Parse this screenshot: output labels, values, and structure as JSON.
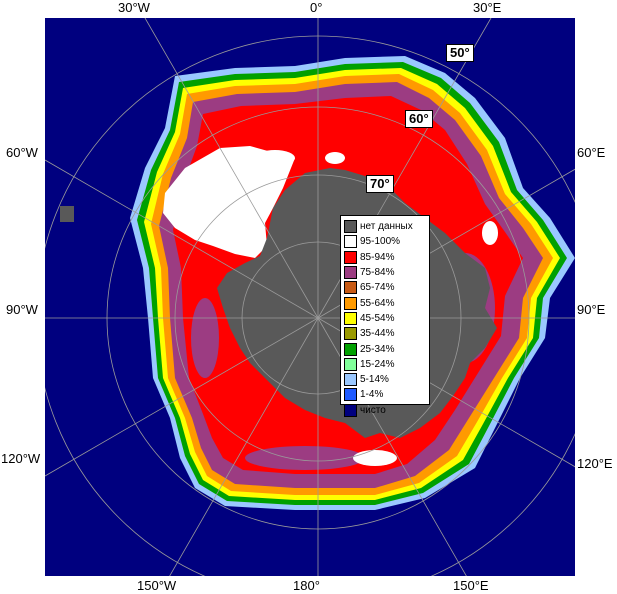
{
  "longitude_labels": {
    "top": [
      "30°W",
      "0°",
      "30°E"
    ],
    "left": [
      "60°W",
      "90°W",
      "120°W"
    ],
    "right": [
      "60°E",
      "90°E",
      "120°E"
    ],
    "bottom": [
      "150°W",
      "180°",
      "150°E"
    ]
  },
  "latitude_labels": [
    "50°",
    "60°",
    "70°"
  ],
  "colors": {
    "ocean": "#00007f",
    "no_data": "#595959",
    "land_outline": "#ffffff",
    "grid": "#9a9a9a"
  },
  "legend": [
    {
      "label": "нет данных",
      "color": "#595959"
    },
    {
      "label": "95-100%",
      "color": "#ffffff"
    },
    {
      "label": "85-94%",
      "color": "#ff0000"
    },
    {
      "label": "75-84%",
      "color": "#9c3c82"
    },
    {
      "label": "65-74%",
      "color": "#c85a14"
    },
    {
      "label": "55-64%",
      "color": "#ff9a00"
    },
    {
      "label": "45-54%",
      "color": "#ffff00"
    },
    {
      "label": "35-44%",
      "color": "#9a9a00"
    },
    {
      "label": "25-34%",
      "color": "#00a000"
    },
    {
      "label": "15-24%",
      "color": "#80ff9a"
    },
    {
      "label": "5-14%",
      "color": "#9ac8ff"
    },
    {
      "label": "1-4%",
      "color": "#1e5aff"
    },
    {
      "label": "чисто",
      "color": "#00007f"
    }
  ]
}
